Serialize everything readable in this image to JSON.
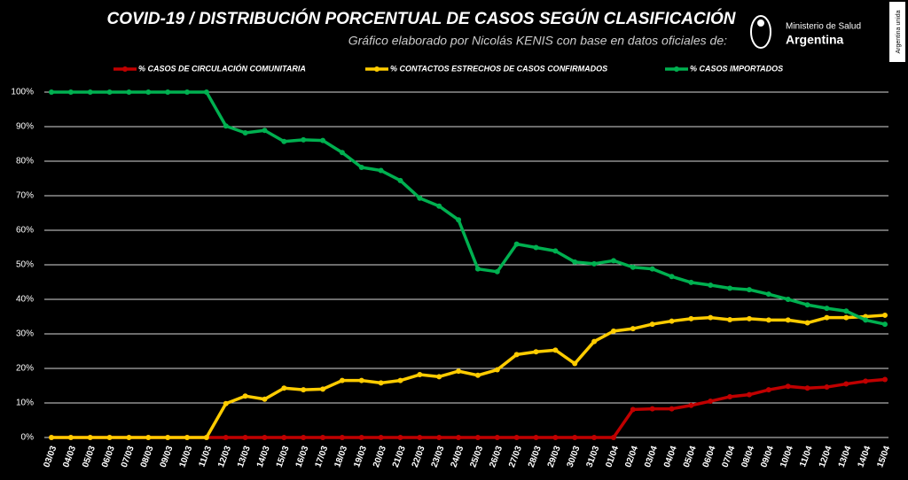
{
  "chart_data": {
    "type": "line",
    "title": "COVID-19  /  DISTRIBUCIÓN PORCENTUAL DE CASOS SEGÚN CLASIFICACIÓN",
    "subtitle": "Gráfico elaborado por Nicolás KENIS con base en datos oficiales de:",
    "logo": {
      "line1": "Ministerio de Salud",
      "line2": "Argentina",
      "badge": "Argentina unida"
    },
    "categories": [
      "03/03",
      "04/03",
      "05/03",
      "06/03",
      "07/03",
      "08/03",
      "09/03",
      "10/03",
      "11/03",
      "12/03",
      "13/03",
      "14/03",
      "15/03",
      "16/03",
      "17/03",
      "18/03",
      "19/03",
      "20/03",
      "21/03",
      "22/03",
      "23/03",
      "24/03",
      "25/03",
      "26/03",
      "27/03",
      "28/03",
      "29/03",
      "30/03",
      "31/03",
      "01/04",
      "02/04",
      "03/04",
      "04/04",
      "05/04",
      "06/04",
      "07/04",
      "08/04",
      "09/04",
      "10/04",
      "11/04",
      "12/04",
      "13/04",
      "14/04",
      "15/04"
    ],
    "series": [
      {
        "name": "% CASOS DE CIRCULACIÓN COMUNITARIA",
        "color": "#c00000",
        "values": [
          0,
          0,
          0,
          0,
          0,
          0,
          0,
          0,
          0,
          0,
          0,
          0,
          0,
          0,
          0,
          0,
          0,
          0,
          0,
          0,
          0,
          0,
          0,
          0,
          0,
          0,
          0,
          0,
          0,
          0,
          8.1,
          8.3,
          8.3,
          9.3,
          10.5,
          11.8,
          12.4,
          13.8,
          14.8,
          14.3,
          14.6,
          15.5,
          16.3,
          16.8
        ]
      },
      {
        "name": "% CONTACTOS ESTRECHOS DE CASOS CONFIRMADOS",
        "color": "#ffcc00",
        "values": [
          0,
          0,
          0,
          0,
          0,
          0,
          0,
          0,
          0,
          9.8,
          12.0,
          11.1,
          14.3,
          13.8,
          14.0,
          16.5,
          16.5,
          15.8,
          16.5,
          18.2,
          17.6,
          19.2,
          18.0,
          19.6,
          24.0,
          24.8,
          25.3,
          21.4,
          27.8,
          30.8,
          31.5,
          32.8,
          33.7,
          34.4,
          34.7,
          34.1,
          34.4,
          34.0,
          34.0,
          33.2,
          34.7,
          34.7,
          35.0,
          35.4
        ]
      },
      {
        "name": "% CASOS IMPORTADOS",
        "color": "#00b050",
        "values": [
          100,
          100,
          100,
          100,
          100,
          100,
          100,
          100,
          100,
          90.2,
          88.2,
          88.9,
          85.7,
          86.2,
          86.0,
          82.5,
          78.2,
          77.3,
          74.4,
          69.3,
          67.0,
          63.0,
          48.8,
          48.0,
          56.0,
          55.0,
          54.0,
          50.8,
          50.3,
          51.2,
          49.3,
          48.8,
          46.6,
          44.9,
          44.1,
          43.2,
          42.8,
          41.5,
          40.0,
          38.4,
          37.4,
          36.6,
          34.0,
          32.8
        ]
      }
    ],
    "ylim": [
      0,
      100
    ],
    "yticks": [
      {
        "value": 0,
        "label": "0%"
      },
      {
        "value": 10,
        "label": "10%"
      },
      {
        "value": 20,
        "label": "20%"
      },
      {
        "value": 30,
        "label": "30%"
      },
      {
        "value": 40,
        "label": "40%"
      },
      {
        "value": 50,
        "label": "50%"
      },
      {
        "value": 60,
        "label": "60%"
      },
      {
        "value": 70,
        "label": "70%"
      },
      {
        "value": 80,
        "label": "80%"
      },
      {
        "value": 90,
        "label": "90%"
      },
      {
        "value": 100,
        "label": "100%"
      }
    ],
    "grid": true
  }
}
